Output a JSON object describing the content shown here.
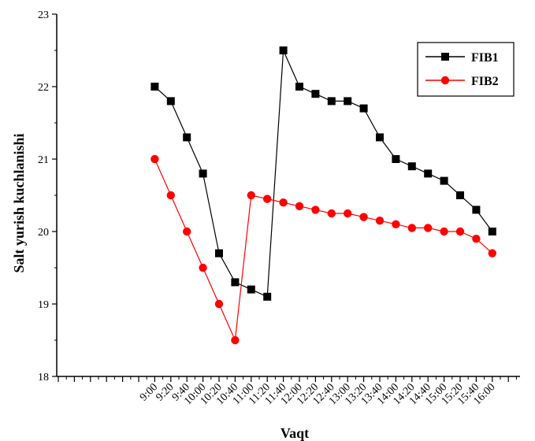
{
  "chart_data": {
    "type": "line",
    "title": "",
    "xlabel": "Vaqt",
    "ylabel": "Salt yurish kuchlanishi",
    "ylim": [
      18,
      23
    ],
    "yticks": [
      18,
      19,
      20,
      21,
      22,
      23
    ],
    "grid": false,
    "legend_position": "top-right",
    "categories": [
      "9:00",
      "9:20",
      "9:40",
      "10:00",
      "10:20",
      "10:40",
      "11:00",
      "11:20",
      "11:40",
      "12:00",
      "12:20",
      "12:40",
      "13:00",
      "13:20",
      "13:40",
      "14:00",
      "14:20",
      "14:40",
      "15:00",
      "15:20",
      "15:40",
      "16:00"
    ],
    "x_extra_before": 6,
    "x_extra_after": 2,
    "series": [
      {
        "name": "FIB1",
        "color": "#000000",
        "marker": "square",
        "values": [
          22.0,
          21.8,
          21.3,
          20.8,
          19.7,
          19.3,
          19.2,
          19.1,
          22.5,
          22.0,
          21.9,
          21.8,
          21.8,
          21.7,
          21.3,
          21.0,
          20.9,
          20.8,
          20.7,
          20.5,
          20.3,
          20.0
        ]
      },
      {
        "name": "FIB2",
        "color": "#ff0000",
        "marker": "circle",
        "values": [
          21.0,
          20.5,
          20.0,
          19.5,
          19.0,
          18.5,
          20.5,
          20.45,
          20.4,
          20.35,
          20.3,
          20.25,
          20.25,
          20.2,
          20.15,
          20.1,
          20.05,
          20.05,
          20.0,
          20.0,
          19.9,
          19.7
        ]
      }
    ]
  }
}
